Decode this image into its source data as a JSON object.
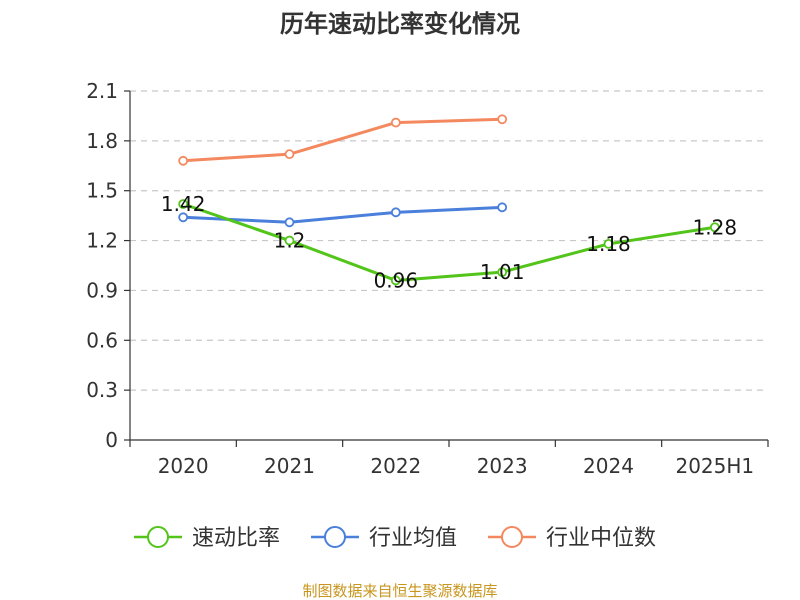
{
  "chart_data": {
    "type": "line",
    "title": "历年速动比率变化情况",
    "categories": [
      "2020",
      "2021",
      "2022",
      "2023",
      "2024",
      "2025H1"
    ],
    "ylim": [
      0,
      2.1
    ],
    "yticks": [
      "0",
      "0.3",
      "0.6",
      "0.9",
      "1.2",
      "1.5",
      "1.8",
      "2.1"
    ],
    "grid": true,
    "legend_position": "bottom",
    "series": [
      {
        "name": "速动比率",
        "color": "#52c41a",
        "values": [
          1.42,
          1.2,
          0.96,
          1.01,
          1.18,
          1.28
        ],
        "labels": [
          "1.42",
          "1.2",
          "0.96",
          "1.01",
          "1.18",
          "1.28"
        ]
      },
      {
        "name": "行业均值",
        "color": "#4a7fdc",
        "values": [
          1.34,
          1.31,
          1.37,
          1.4,
          null,
          null
        ]
      },
      {
        "name": "行业中位数",
        "color": "#f4895f",
        "values": [
          1.68,
          1.72,
          1.91,
          1.93,
          null,
          null
        ]
      }
    ],
    "source": "制图数据来自恒生聚源数据库"
  }
}
